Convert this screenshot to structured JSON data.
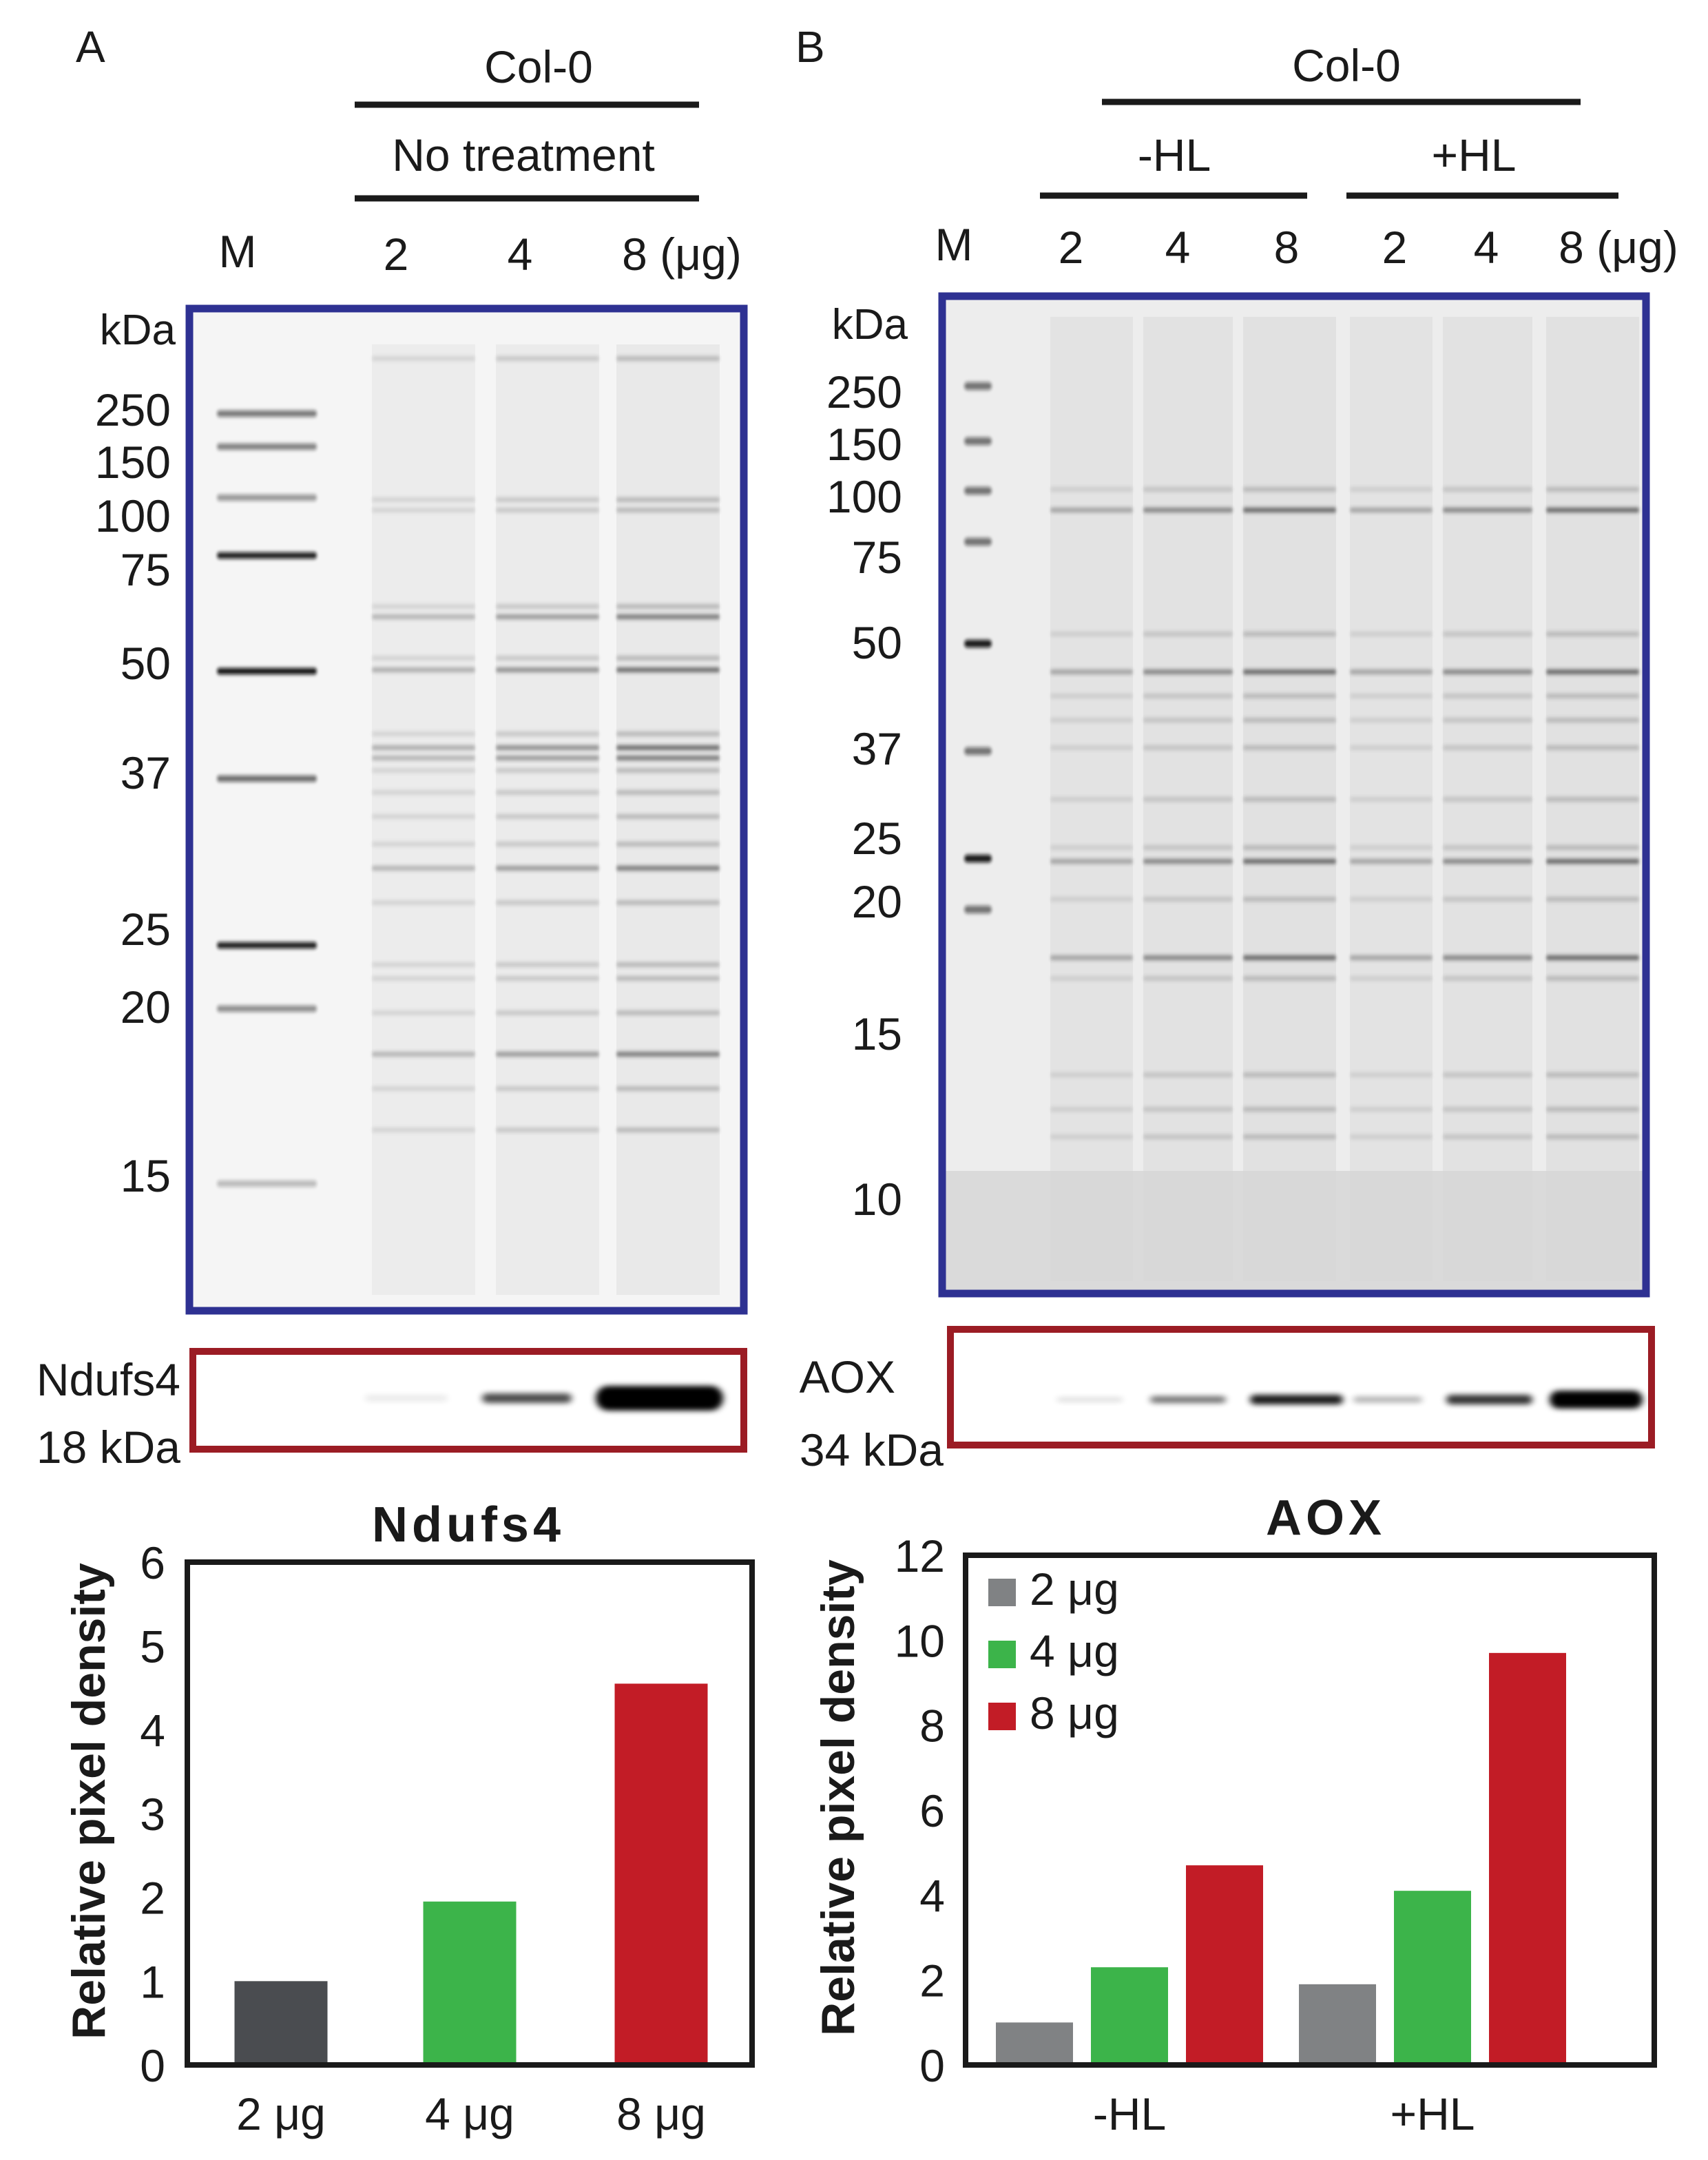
{
  "colors": {
    "gel_frame": "#2e3192",
    "blot_frame": "#9b1c24",
    "bar_2ug": "#4a4c50",
    "bar_2ug_aox": "#808284",
    "bar_4ug": "#3cb44a",
    "bar_8ug": "#c21c26"
  },
  "panel_a": {
    "letter": "A",
    "genotype": "Col-0",
    "treatment": "No treatment",
    "marker_lane": "M",
    "lane_labels": [
      "2",
      "4",
      "8 (μg)"
    ],
    "kda_unit": "kDa",
    "marker_sizes": [
      "250",
      "150",
      "100",
      "75",
      "50",
      "37",
      "25",
      "20",
      "15"
    ],
    "blot_name": "Ndufs4",
    "blot_size": "18 kDa"
  },
  "panel_b": {
    "letter": "B",
    "genotype": "Col-0",
    "groups": [
      "-HL",
      "+HL"
    ],
    "marker_lane": "M",
    "lane_labels": [
      "2",
      "4",
      "8",
      "2",
      "4",
      "8 (μg)"
    ],
    "kda_unit": "kDa",
    "marker_sizes": [
      "250",
      "150",
      "100",
      "75",
      "50",
      "37",
      "25",
      "20",
      "15",
      "10"
    ],
    "blot_name": "AOX",
    "blot_size": "34 kDa"
  },
  "chart_data": [
    {
      "type": "bar",
      "title": "Ndufs4",
      "ylabel": "Relative pixel density",
      "xlabel": "",
      "categories": [
        "2 μg",
        "4 μg",
        "8 μg"
      ],
      "values": [
        1.0,
        1.95,
        4.55
      ],
      "ylim": [
        0,
        6
      ],
      "yticks": [
        "0",
        "1",
        "2",
        "3",
        "4",
        "5",
        "6"
      ],
      "grid": false,
      "legend": "none"
    },
    {
      "type": "bar",
      "title": "AOX",
      "ylabel": "Relative pixel density",
      "xlabel": "",
      "categories": [
        "-HL",
        "+HL"
      ],
      "series": [
        {
          "name": "2 μg",
          "values": [
            1.0,
            1.9
          ]
        },
        {
          "name": "4 μg",
          "values": [
            2.3,
            4.1
          ]
        },
        {
          "name": "8 μg",
          "values": [
            4.7,
            9.7
          ]
        }
      ],
      "ylim": [
        0,
        12
      ],
      "yticks": [
        "0",
        "2",
        "4",
        "6",
        "8",
        "10",
        "12"
      ],
      "grid": false,
      "legend": "top-left"
    }
  ]
}
